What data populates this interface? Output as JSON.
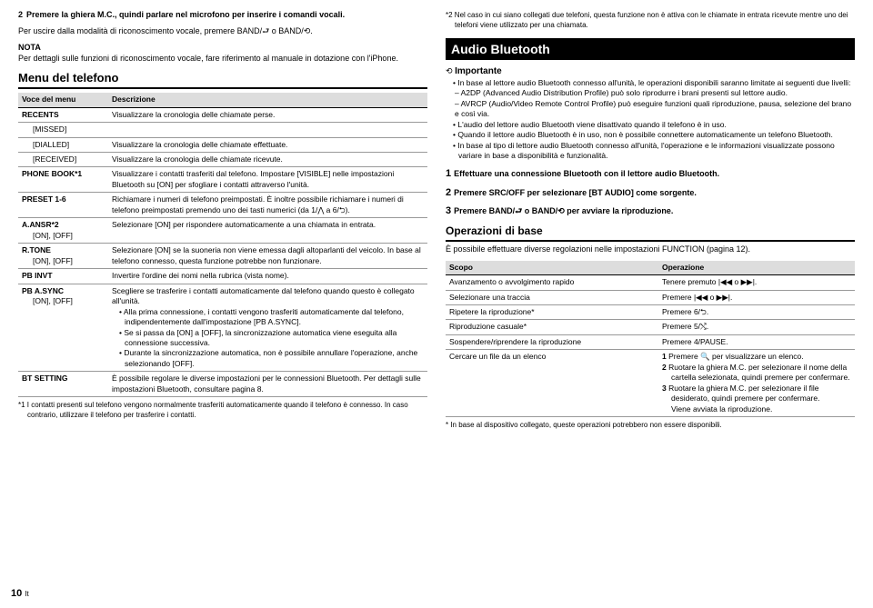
{
  "left": {
    "step2": "Premere la ghiera M.C., quindi parlare nel microfono per inserire i comandi vocali.",
    "exit": "Per uscire dalla modalità di riconoscimento vocale, premere BAND/⮐ o BAND/⟲.",
    "nota_head": "NOTA",
    "nota_body": "Per dettagli sulle funzioni di riconoscimento vocale, fare riferimento al manuale in dotazione con l'iPhone.",
    "menu_title": "Menu del telefono",
    "th1": "Voce del menu",
    "th2": "Descrizione",
    "rows": [
      {
        "k": "RECENTS",
        "v": "Visualizzare la cronologia delle chiamate perse."
      },
      {
        "k": "  [MISSED]",
        "v": ""
      },
      {
        "k": "  [DIALLED]",
        "v": "Visualizzare la cronologia delle chiamate effettuate."
      },
      {
        "k": "  [RECEIVED]",
        "v": "Visualizzare la cronologia delle chiamate ricevute."
      },
      {
        "k": "PHONE BOOK*1",
        "v": "Visualizzare i contatti trasferiti dal telefono. Impostare [VISIBLE] nelle impostazioni Bluetooth su [ON] per sfogliare i contatti attraverso l'unità."
      },
      {
        "k": "PRESET 1-6",
        "v": "Richiamare i numeri di telefono preimpostati. È inoltre possibile richiamare i numeri di telefono preimpostati premendo uno dei tasti numerici (da 1/⋀ a 6/⮌)."
      },
      {
        "k": "A.ANSR*2",
        "sub": "[ON], [OFF]",
        "v": "Selezionare [ON] per rispondere automaticamente a una chiamata in entrata."
      },
      {
        "k": "R.TONE",
        "sub": "[ON], [OFF]",
        "v": "Selezionare [ON] se la suoneria non viene emessa dagli altoparlanti del veicolo. In base al telefono connesso, questa funzione potrebbe non funzionare."
      },
      {
        "k": "PB INVT",
        "v": "Invertire l'ordine dei nomi nella rubrica (vista nome)."
      },
      {
        "k": "PB A.SYNC",
        "sub": "[ON], [OFF]",
        "v": "Scegliere se trasferire i contatti automaticamente dal telefono quando questo è collegato all'unità.",
        "bullets": [
          "Alla prima connessione, i contatti vengono trasferiti automaticamente dal telefono, indipendentemente dall'impostazione [PB A.SYNC].",
          "Se si passa da [ON] a [OFF], la sincronizzazione automatica viene eseguita alla connessione successiva.",
          "Durante la sincronizzazione automatica, non è possibile annullare l'operazione, anche selezionando [OFF]."
        ]
      },
      {
        "k": "BT SETTING",
        "v": "È possibile regolare le diverse impostazioni per le connessioni Bluetooth. Per dettagli sulle impostazioni Bluetooth, consultare pagina 8."
      }
    ],
    "fn1": "*1 I contatti presenti sul telefono vengono normalmente trasferiti automaticamente quando il telefono è connesso. In caso contrario, utilizzare il telefono per trasferire i contatti.",
    "pagenum": "10",
    "pagelang": "It"
  },
  "right": {
    "fn2": "*2 Nel caso in cui siano collegati due telefoni, questa funzione non è attiva con le chiamate in entrata ricevute mentre uno dei telefoni viene utilizzato per una chiamata.",
    "audio_title": "Audio Bluetooth",
    "imp_icon": "⟲",
    "importante": "Importante",
    "imp_bullets": [
      "In base al lettore audio Bluetooth connesso all'unità, le operazioni disponibili saranno limitate ai seguenti due livelli:",
      "– A2DP (Advanced Audio Distribution Profile) può solo riprodurre i brani presenti sul lettore audio.",
      "– AVRCP (Audio/Video Remote Control Profile) può eseguire funzioni quali riproduzione, pausa, selezione del brano e così via.",
      "L'audio del lettore audio Bluetooth viene disattivato quando il telefono è in uso.",
      "Quando il lettore audio Bluetooth è in uso, non è possibile connettere automaticamente un telefono Bluetooth.",
      "In base al tipo di lettore audio Bluetooth connesso all'unità, l'operazione e le informazioni visualizzate possono variare in base a disponibilità e funzionalità."
    ],
    "step1": "Effettuare una connessione Bluetooth con il lettore audio Bluetooth.",
    "step2": "Premere SRC/OFF per selezionare [BT AUDIO] come sorgente.",
    "step3": "Premere BAND/⮐ o BAND/⟲ per avviare la riproduzione.",
    "ops_title": "Operazioni di base",
    "ops_intro": "È possibile effettuare diverse regolazioni nelle impostazioni FUNCTION (pagina 12).",
    "oth1": "Scopo",
    "oth2": "Operazione",
    "orows": [
      {
        "k": "Avanzamento o avvolgimento rapido",
        "v": "Tenere premuto |◀◀ o ▶▶|."
      },
      {
        "k": "Selezionare una traccia",
        "v": "Premere |◀◀ o ▶▶|."
      },
      {
        "k": "Ripetere la riproduzione*",
        "v": "Premere 6/⮌."
      },
      {
        "k": "Riproduzione casuale*",
        "v": "Premere 5/⤭."
      },
      {
        "k": "Sospendere/riprendere la riproduzione",
        "v": "Premere 4/PAUSE."
      },
      {
        "k": "Cercare un file da un elenco",
        "v": "",
        "steps": [
          "Premere 🔍 per visualizzare un elenco.",
          "Ruotare la ghiera M.C. per selezionare il nome della cartella selezionata, quindi premere per confermare.",
          "Ruotare la ghiera M.C. per selezionare il file desiderato, quindi premere per confermare.\nViene avviata la riproduzione."
        ]
      }
    ],
    "ofn": "* In base al dispositivo collegato, queste operazioni potrebbero non essere disponibili."
  }
}
